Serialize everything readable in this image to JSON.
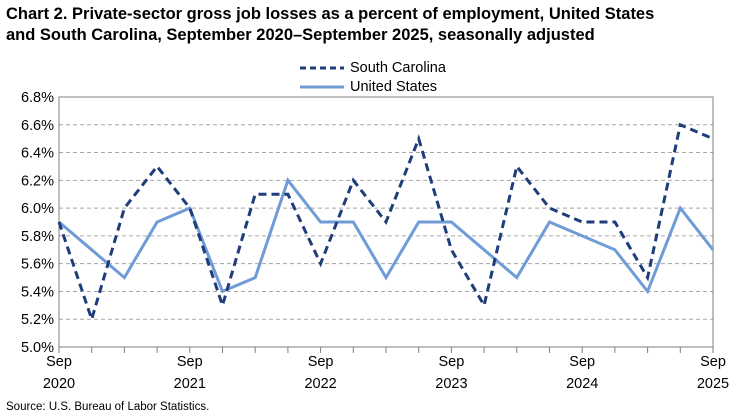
{
  "title_line1": "Chart 2. Private-sector gross job losses as a percent of employment, United States",
  "title_line2": "and South Carolina, September 2020–September 2025, seasonally adjusted",
  "source": "Source: U.S. Bureau of Labor Statistics.",
  "chart_data": {
    "type": "line",
    "x": [
      "Sep 2020",
      "Dec 2020",
      "Mar 2021",
      "Jun 2021",
      "Sep 2021",
      "Dec 2021",
      "Mar 2022",
      "Jun 2022",
      "Sep 2022",
      "Dec 2022",
      "Mar 2023",
      "Jun 2023",
      "Sep 2023",
      "Dec 2023",
      "Mar 2024",
      "Jun 2024",
      "Sep 2024",
      "Dec 2024",
      "Mar 2025",
      "Jun 2025",
      "Sep 2025"
    ],
    "x_tick_labels": [
      {
        "month": "Sep",
        "year": "2020",
        "index": 0
      },
      {
        "month": "Sep",
        "year": "2021",
        "index": 4
      },
      {
        "month": "Sep",
        "year": "2022",
        "index": 8
      },
      {
        "month": "Sep",
        "year": "2023",
        "index": 12
      },
      {
        "month": "Sep",
        "year": "2024",
        "index": 16
      },
      {
        "month": "Sep",
        "year": "2025",
        "index": 20
      }
    ],
    "y_ticks": [
      "5.0%",
      "5.2%",
      "5.4%",
      "5.6%",
      "5.8%",
      "6.0%",
      "6.2%",
      "6.4%",
      "6.6%",
      "6.8%"
    ],
    "ylim": [
      5.0,
      6.8
    ],
    "grid": true,
    "legend_placement": "top",
    "series": [
      {
        "name": "South Carolina",
        "style": "dashed",
        "color": "#1f3d7a",
        "values": [
          5.9,
          5.2,
          6.0,
          6.3,
          6.0,
          5.3,
          6.1,
          6.1,
          5.6,
          6.2,
          5.9,
          6.5,
          5.7,
          5.3,
          6.3,
          6.0,
          5.9,
          5.9,
          5.5,
          6.6,
          6.5
        ]
      },
      {
        "name": "United States",
        "style": "solid",
        "color": "#6f9bd6",
        "values": [
          5.9,
          5.7,
          5.5,
          5.9,
          6.0,
          5.4,
          5.5,
          6.2,
          5.9,
          5.9,
          5.5,
          5.9,
          5.9,
          5.7,
          5.5,
          5.9,
          5.8,
          5.7,
          5.4,
          6.0,
          5.7
        ]
      }
    ]
  }
}
